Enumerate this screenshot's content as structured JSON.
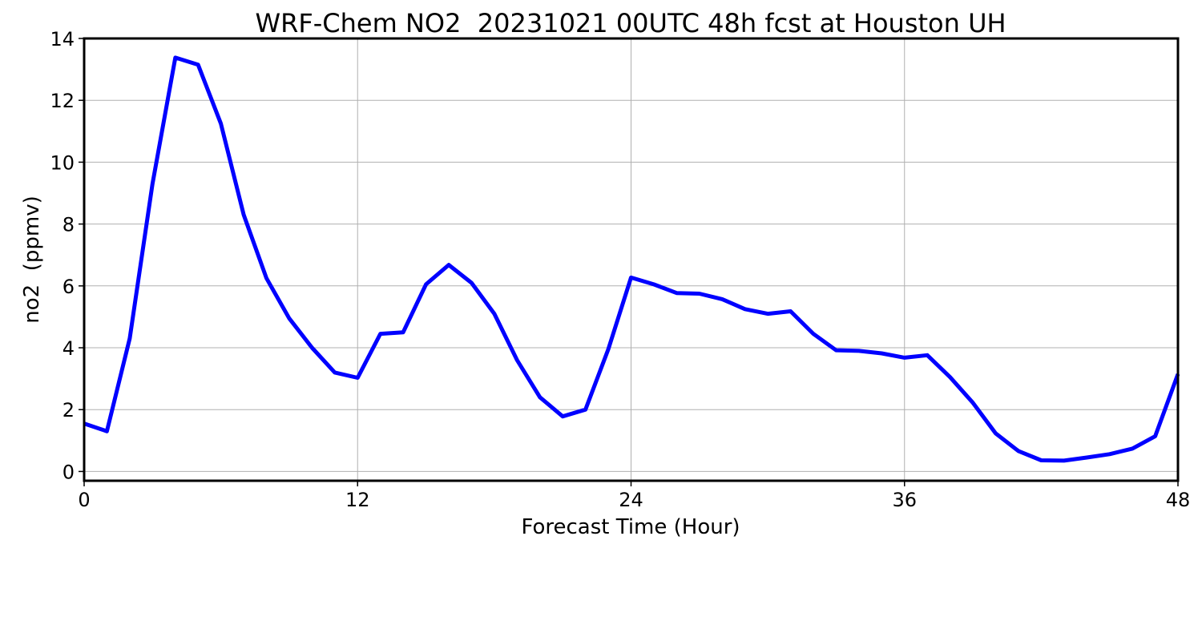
{
  "chart_data": {
    "type": "line",
    "title": "WRF-Chem NO2  20231021 00UTC 48h fcst at Houston UH",
    "xlabel": "Forecast Time (Hour)",
    "ylabel": "no2  (ppmv)",
    "xlim": [
      0,
      48
    ],
    "ylim": [
      -0.3,
      14
    ],
    "x_ticks": [
      0,
      12,
      24,
      36,
      48
    ],
    "y_ticks": [
      0,
      2,
      4,
      6,
      8,
      10,
      12,
      14
    ],
    "grid": true,
    "legend": "none",
    "series": [
      {
        "color": "#0000ff",
        "x": [
          0,
          1,
          2,
          3,
          4,
          5,
          6,
          7,
          8,
          9,
          10,
          11,
          12,
          13,
          14,
          15,
          16,
          17,
          18,
          19,
          20,
          21,
          22,
          23,
          24,
          25,
          26,
          27,
          28,
          29,
          30,
          31,
          32,
          33,
          34,
          35,
          36,
          37,
          38,
          39,
          40,
          41,
          42,
          43,
          44,
          45,
          46,
          47,
          48
        ],
        "values": [
          1.55,
          1.3,
          4.3,
          9.3,
          13.38,
          13.15,
          11.25,
          8.3,
          6.25,
          4.95,
          4.0,
          3.2,
          3.03,
          4.45,
          4.5,
          6.05,
          6.68,
          6.1,
          5.1,
          3.6,
          2.4,
          1.78,
          2.0,
          3.95,
          6.27,
          6.05,
          5.77,
          5.75,
          5.57,
          5.25,
          5.1,
          5.18,
          4.45,
          3.92,
          3.9,
          3.82,
          3.68,
          3.76,
          3.05,
          2.22,
          1.23,
          0.66,
          0.36,
          0.35,
          0.45,
          0.56,
          0.74,
          1.14,
          3.15
        ]
      }
    ]
  }
}
